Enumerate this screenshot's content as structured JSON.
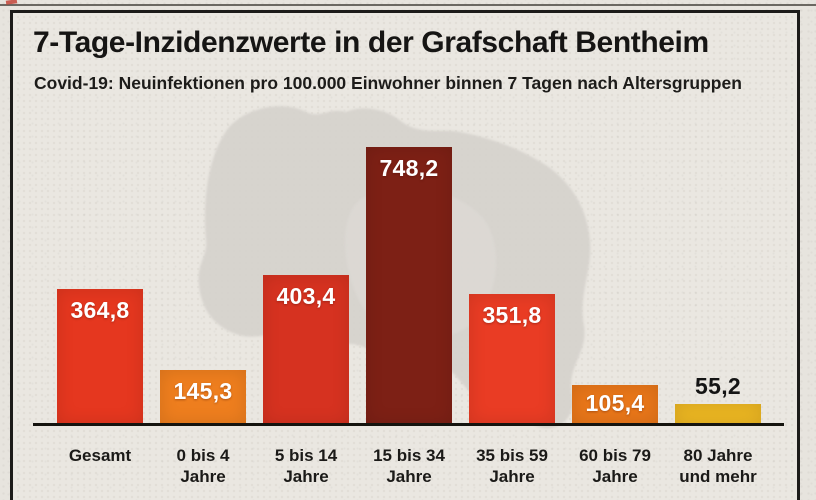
{
  "header": {
    "title": "7-Tage-Inzidenzwerte in der Grafschaft Bentheim",
    "subtitle": "Covid-19: Neuinfektionen pro 100.000 Einwohner binnen 7 Tagen nach Altersgruppen"
  },
  "colors": {
    "paper": "#e9e6e0",
    "frame_border": "#1c1b19",
    "axis": "#15140f",
    "map_silhouette": "#d5d2cc",
    "text": "#141414",
    "value_text": "#ffffff"
  },
  "chart_data": {
    "type": "bar",
    "title": "7-Tage-Inzidenzwerte in der Grafschaft Bentheim",
    "subtitle": "Covid-19: Neuinfektionen pro 100.000 Einwohner binnen 7 Tagen nach Altersgruppen",
    "categories": [
      [
        "Gesamt"
      ],
      [
        "0 bis 4",
        "Jahre"
      ],
      [
        "5 bis 14",
        "Jahre"
      ],
      [
        "15 bis 34",
        "Jahre"
      ],
      [
        "35 bis 59",
        "Jahre"
      ],
      [
        "60 bis 79",
        "Jahre"
      ],
      [
        "80 Jahre",
        "und mehr"
      ]
    ],
    "values": [
      364.8,
      145.3,
      403.4,
      748.2,
      351.8,
      105.4,
      55.2
    ],
    "value_labels": [
      "364,8",
      "145,3",
      "403,4",
      "748,2",
      "351,8",
      "105,4",
      "55,2"
    ],
    "bar_colors": [
      "#e5371f",
      "#ee7e1e",
      "#d63220",
      "#7d2015",
      "#e93c24",
      "#e87619",
      "#edb722"
    ],
    "value_label_colors": [
      "#ffffff",
      "#ffffff",
      "#ffffff",
      "#ffffff",
      "#ffffff",
      "#ffffff",
      "#141414"
    ],
    "value_label_position": [
      "inside",
      "inside",
      "inside",
      "inside",
      "inside",
      "inside",
      "above"
    ],
    "xlabel": "",
    "ylabel": "Neuinfektionen pro 100.000 Einwohner binnen 7 Tagen",
    "ylim": [
      0,
      780
    ],
    "grid": false,
    "legend": false
  }
}
